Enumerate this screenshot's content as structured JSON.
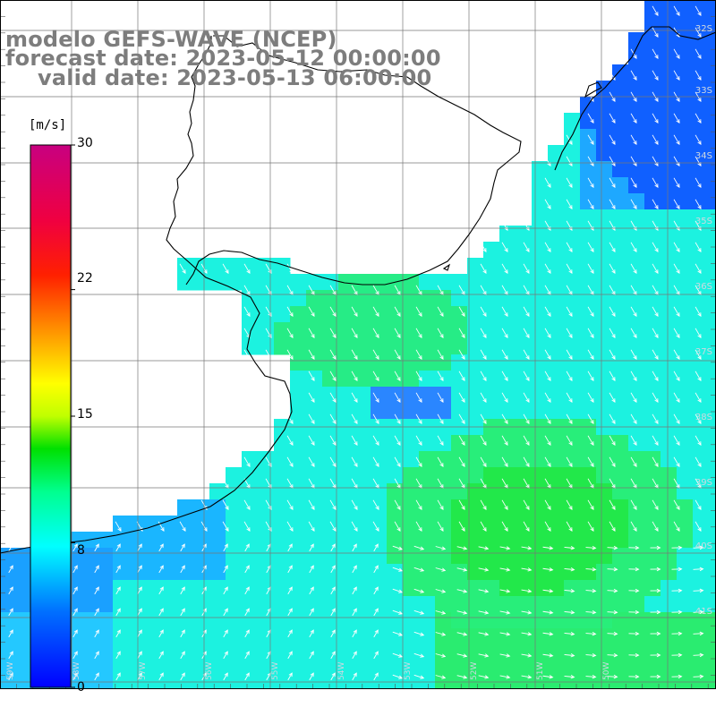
{
  "title": {
    "line1": "modelo GEFS-WAVE (NCEP)",
    "line2": "forecast date: 2023-05-12 00:00:00",
    "line3": "valid date: 2023-05-13 06:00:00"
  },
  "colorbar": {
    "unit": "[m/s]",
    "min": 0,
    "max": 30,
    "tick_labels": [
      "30",
      "22",
      "15",
      "8",
      "0"
    ],
    "tick_values": [
      30,
      22,
      15,
      8,
      0
    ],
    "colors": [
      "#0000ff",
      "#00b0ff",
      "#00ffff",
      "#00ff80",
      "#00e000",
      "#80ff00",
      "#ffff00",
      "#ffa000",
      "#ff4000",
      "#ff0000",
      "#e00060",
      "#c80080"
    ]
  },
  "grid": {
    "lat_labels": [
      "32S",
      "33S",
      "34S",
      "35S",
      "36S",
      "37S",
      "38S",
      "39S",
      "40S",
      "41S"
    ],
    "lon_labels": [
      "59W",
      "58W",
      "57W",
      "56W",
      "55W",
      "54W",
      "53W",
      "52W",
      "51W",
      "50W"
    ]
  },
  "colors": {
    "ocean_cyan": "#19f0ff",
    "ocean_green": "#23f06a",
    "ocean_blue": "#2a7fff",
    "land": "#ffffff",
    "gridline": "#7a7a7a",
    "coast": "#000000",
    "arrow": "#ffffff"
  }
}
